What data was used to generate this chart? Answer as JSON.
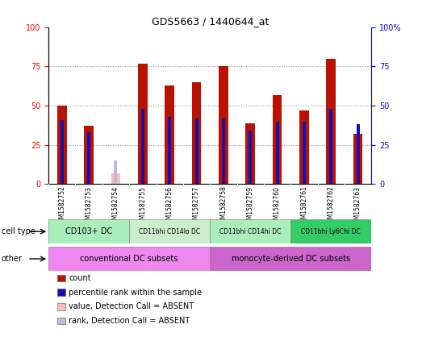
{
  "title": "GDS5663 / 1440644_at",
  "samples": [
    "GSM1582752",
    "GSM1582753",
    "GSM1582754",
    "GSM1582755",
    "GSM1582756",
    "GSM1582757",
    "GSM1582758",
    "GSM1582759",
    "GSM1582760",
    "GSM1582761",
    "GSM1582762",
    "GSM1582763"
  ],
  "red_values": [
    50,
    37,
    0,
    77,
    63,
    65,
    75,
    39,
    57,
    47,
    80,
    32
  ],
  "blue_values": [
    41,
    33,
    0,
    48,
    43,
    42,
    42,
    34,
    40,
    40,
    48,
    38
  ],
  "absent_red": [
    0,
    0,
    7,
    0,
    0,
    0,
    0,
    0,
    0,
    0,
    0,
    0
  ],
  "absent_blue": [
    0,
    0,
    15,
    0,
    0,
    0,
    0,
    0,
    0,
    0,
    0,
    0
  ],
  "is_absent": [
    false,
    false,
    true,
    false,
    false,
    false,
    false,
    false,
    false,
    false,
    false,
    false
  ],
  "ct_groups": [
    {
      "label": "CD103+ DC",
      "start": 0,
      "end": 3,
      "color": "#AAEEBB"
    },
    {
      "label": "CD11bhi CD14lo DC",
      "start": 3,
      "end": 6,
      "color": "#CCEECC"
    },
    {
      "label": "CD11bhi CD14hi DC",
      "start": 6,
      "end": 9,
      "color": "#AAEEBB"
    },
    {
      "label": "CD11bhi Ly6Chi DC",
      "start": 9,
      "end": 12,
      "color": "#33CC66"
    }
  ],
  "ot_groups": [
    {
      "label": "conventional DC subsets",
      "start": 0,
      "end": 6,
      "color": "#EE88EE"
    },
    {
      "label": "monocyte-derived DC subsets",
      "start": 6,
      "end": 12,
      "color": "#CC66CC"
    }
  ],
  "bar_color": "#BB1100",
  "blue_color": "#1111BB",
  "absent_red_color": "#FFBBBB",
  "absent_blue_color": "#BBBBDD",
  "legend_items": [
    {
      "color": "#BB1100",
      "label": "count"
    },
    {
      "color": "#1111BB",
      "label": "percentile rank within the sample"
    },
    {
      "color": "#FFBBBB",
      "label": "value, Detection Call = ABSENT"
    },
    {
      "color": "#BBBBDD",
      "label": "rank, Detection Call = ABSENT"
    }
  ]
}
